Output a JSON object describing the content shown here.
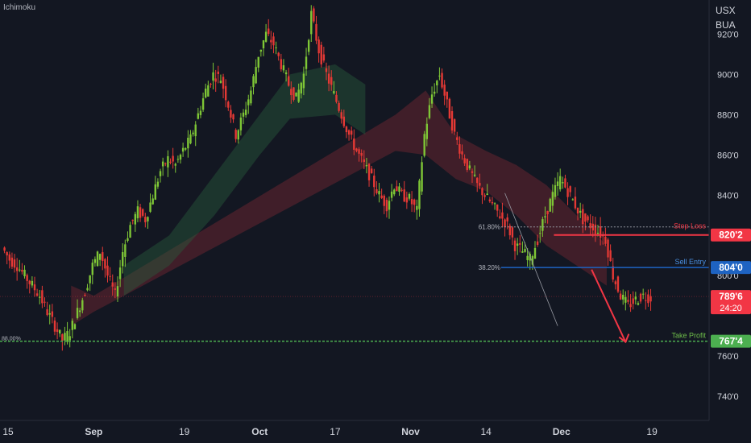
{
  "indicator": "Ichimoku",
  "symbol": "USX\nBUA",
  "chart_data": {
    "type": "candlestick",
    "y_axis": {
      "range": [
        728,
        937
      ],
      "ticks": [
        "920'0",
        "900'0",
        "880'0",
        "860'0",
        "840'0",
        "800'0",
        "760'0",
        "740'0"
      ],
      "tick_values": [
        920,
        900,
        880,
        860,
        840,
        800,
        760,
        740
      ]
    },
    "x_axis": {
      "ticks": [
        {
          "label": "15",
          "index": 0
        },
        {
          "label": "Sep",
          "index": 12
        },
        {
          "label": "19",
          "index": 24
        },
        {
          "label": "Oct",
          "index": 34
        },
        {
          "label": "17",
          "index": 44
        },
        {
          "label": "Nov",
          "index": 54
        },
        {
          "label": "14",
          "index": 64
        },
        {
          "label": "Dec",
          "index": 74
        },
        {
          "label": "19",
          "index": 86
        }
      ],
      "bars": 94
    },
    "close": [
      814,
      808,
      805,
      800,
      795,
      790,
      782,
      775,
      768,
      772,
      782,
      792,
      805,
      812,
      800,
      790,
      812,
      825,
      832,
      828,
      840,
      852,
      858,
      855,
      862,
      868,
      880,
      892,
      900,
      898,
      885,
      870,
      880,
      892,
      910,
      920,
      915,
      905,
      895,
      888,
      900,
      930,
      912,
      900,
      890,
      880,
      870,
      862,
      855,
      848,
      840,
      835,
      845,
      840,
      838,
      832,
      870,
      890,
      900,
      885,
      870,
      860,
      852,
      845,
      840,
      835,
      830,
      825,
      815,
      812,
      808,
      818,
      830,
      840,
      848,
      842,
      835,
      828,
      825,
      822,
      818,
      800,
      790,
      785,
      788,
      790,
      789
    ],
    "ichimoku_cloud_bearish": [
      {
        "x": 9,
        "top": 795,
        "bottom": 775
      },
      {
        "x": 12,
        "top": 790,
        "bottom": 782
      },
      {
        "x": 52,
        "top": 880,
        "bottom": 862
      },
      {
        "x": 56,
        "top": 892,
        "bottom": 860
      },
      {
        "x": 60,
        "top": 870,
        "bottom": 848
      },
      {
        "x": 64,
        "top": 862,
        "bottom": 842
      },
      {
        "x": 68,
        "top": 855,
        "bottom": 830
      },
      {
        "x": 72,
        "top": 845,
        "bottom": 815
      },
      {
        "x": 76,
        "top": 830,
        "bottom": 805
      },
      {
        "x": 80,
        "top": 815,
        "bottom": 795
      }
    ],
    "ichimoku_cloud_bullish": [
      {
        "x": 16,
        "top": 805,
        "bottom": 790
      },
      {
        "x": 22,
        "top": 820,
        "bottom": 805
      },
      {
        "x": 28,
        "top": 850,
        "bottom": 830
      },
      {
        "x": 34,
        "top": 880,
        "bottom": 860
      },
      {
        "x": 38,
        "top": 900,
        "bottom": 878
      },
      {
        "x": 44,
        "top": 905,
        "bottom": 880
      },
      {
        "x": 48,
        "top": 895,
        "bottom": 870
      }
    ],
    "levels": {
      "stop_loss": {
        "label": "Stop Loss",
        "value": 820.2,
        "price_label": "820'2",
        "color": "#f23645"
      },
      "sell_entry": {
        "label": "Sell Entry",
        "value": 804.0,
        "price_label": "804'0",
        "color": "#1e63c2"
      },
      "take_profit": {
        "label": "Take Profit",
        "value": 767.4,
        "price_label": "767'4",
        "color": "#4caf50"
      },
      "current": {
        "value": 789.6,
        "price_label": "789'6",
        "countdown": "24:20",
        "color": "#f23645"
      }
    },
    "fib_labels": {
      "fib_618": "61.80%",
      "fib_382": "38.20%",
      "fib_886": "88.00%"
    }
  }
}
